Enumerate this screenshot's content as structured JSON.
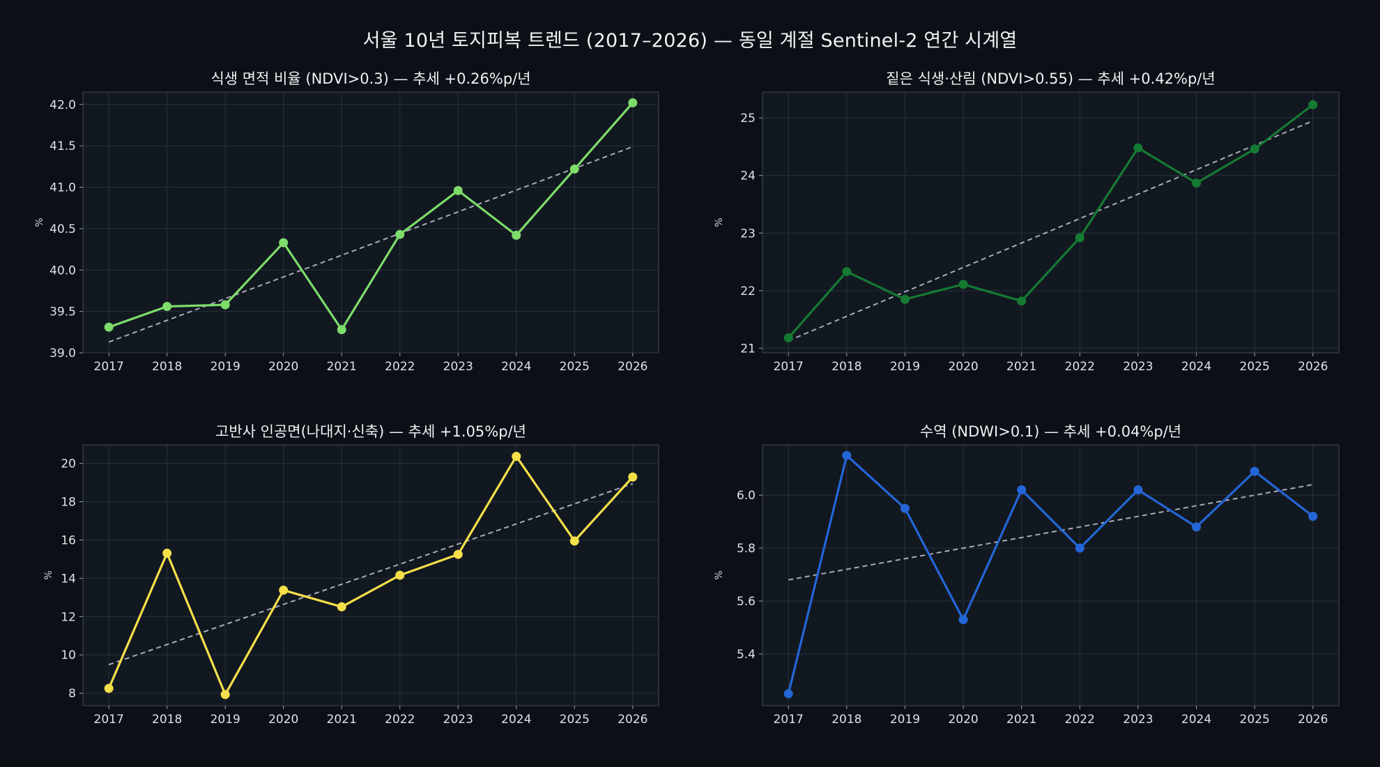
{
  "suptitle": "서울 10년 토지피복 트렌드 (2017–2026) — 동일 계절 Sentinel-2 연간 시계열",
  "chart_data": [
    {
      "type": "line",
      "title": "식생 면적 비율 (NDVI>0.3) — 추세 +0.26%p/년",
      "xlabel": "",
      "ylabel": "%",
      "x": [
        2017,
        2018,
        2019,
        2020,
        2021,
        2022,
        2023,
        2024,
        2025,
        2026
      ],
      "values": [
        39.31,
        39.56,
        39.58,
        40.33,
        39.28,
        40.43,
        40.96,
        40.42,
        41.22,
        42.02
      ],
      "trend": [
        39.13,
        41.49
      ],
      "ylim": [
        39.0,
        42.15
      ],
      "yticks": [
        39.0,
        39.5,
        40.0,
        40.5,
        41.0,
        41.5,
        42.0
      ],
      "ytick_labels": [
        "39.0",
        "39.5",
        "40.0",
        "40.5",
        "41.0",
        "41.5",
        "42.0"
      ],
      "color": "#7ddc6a",
      "grid": true
    },
    {
      "type": "line",
      "title": "짙은 식생·산림 (NDVI>0.55) — 추세 +0.42%p/년",
      "xlabel": "",
      "ylabel": "%",
      "x": [
        2017,
        2018,
        2019,
        2020,
        2021,
        2022,
        2023,
        2024,
        2025,
        2026
      ],
      "values": [
        21.18,
        22.33,
        21.85,
        22.11,
        21.82,
        22.92,
        24.48,
        23.87,
        24.46,
        25.23
      ],
      "trend": [
        21.13,
        24.95
      ],
      "ylim": [
        20.92,
        25.45
      ],
      "yticks": [
        21,
        22,
        23,
        24,
        25
      ],
      "ytick_labels": [
        "21",
        "22",
        "23",
        "24",
        "25"
      ],
      "color": "#157a32",
      "grid": true
    },
    {
      "type": "line",
      "title": "고반사 인공면(나대지·신축) — 추세 +1.05%p/년",
      "xlabel": "",
      "ylabel": "%",
      "x": [
        2017,
        2018,
        2019,
        2020,
        2021,
        2022,
        2023,
        2024,
        2025,
        2026
      ],
      "values": [
        8.25,
        15.31,
        7.93,
        13.38,
        12.51,
        14.16,
        15.25,
        20.37,
        15.95,
        19.29
      ],
      "trend": [
        9.49,
        18.94
      ],
      "ylim": [
        7.35,
        20.97
      ],
      "yticks": [
        8,
        10,
        12,
        14,
        16,
        18,
        20
      ],
      "ytick_labels": [
        "8",
        "10",
        "12",
        "14",
        "16",
        "18",
        "20"
      ],
      "color": "#f5e04a",
      "grid": true
    },
    {
      "type": "line",
      "title": "수역 (NDWI>0.1) — 추세 +0.04%p/년",
      "xlabel": "",
      "ylabel": "%",
      "x": [
        2017,
        2018,
        2019,
        2020,
        2021,
        2022,
        2023,
        2024,
        2025,
        2026
      ],
      "values": [
        5.25,
        6.15,
        5.95,
        5.53,
        6.02,
        5.8,
        6.02,
        5.88,
        6.09,
        5.92
      ],
      "trend": [
        5.68,
        6.04
      ],
      "ylim": [
        5.205,
        6.19
      ],
      "yticks": [
        5.4,
        5.6,
        5.8,
        6.0
      ],
      "ytick_labels": [
        "5.4",
        "5.6",
        "5.8",
        "6.0"
      ],
      "color": "#2466d8",
      "grid": true
    }
  ]
}
